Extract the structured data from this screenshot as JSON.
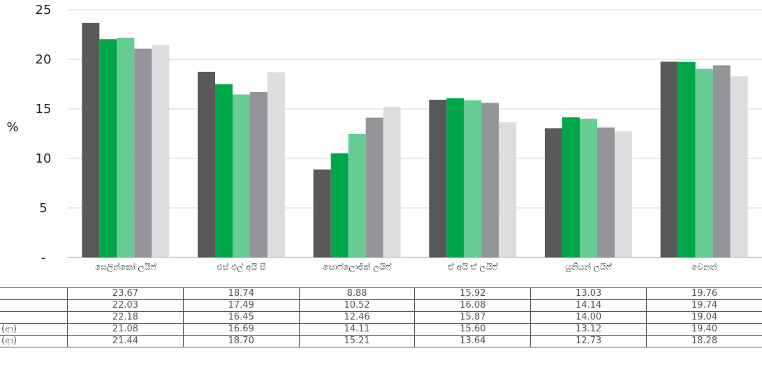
{
  "chart_data": {
    "type": "bar",
    "title": "",
    "xlabel": "",
    "ylabel": "%",
    "ylim": [
      0,
      25
    ],
    "yticks": [
      "-",
      "5",
      "10",
      "15",
      "20",
      "25"
    ],
    "grid": true,
    "categories": [
      "සෙලින්කෝ ලයිෆ්",
      "එස් එල් අයි සී",
      "සොෆ්ලොජික් ලයිෆ්",
      "ඒ අයි ඒ ලයිෆ්",
      "යුනියන් ලයිෆ්",
      "වෙනත්"
    ],
    "series": [
      {
        "name": "",
        "color": "#58595b",
        "values": [
          23.67,
          18.74,
          8.88,
          15.92,
          13.03,
          19.76
        ],
        "labels": [
          "23.67",
          "18.74",
          "8.88",
          "15.92",
          "13.03",
          "19.76"
        ]
      },
      {
        "name": "",
        "color": "#00a74a",
        "values": [
          22.03,
          17.49,
          10.52,
          16.08,
          14.14,
          19.74
        ],
        "labels": [
          "22.03",
          "17.49",
          "10.52",
          "16.08",
          "14.14",
          "19.74"
        ]
      },
      {
        "name": "",
        "color": "#66cc94",
        "values": [
          22.18,
          16.45,
          12.46,
          15.87,
          14.0,
          19.04
        ],
        "labels": [
          "22.18",
          "16.45",
          "12.46",
          "15.87",
          "14.00",
          "19.04"
        ]
      },
      {
        "name": "(ආ)",
        "color": "#939598",
        "values": [
          21.08,
          16.69,
          14.11,
          15.6,
          13.12,
          19.4
        ],
        "labels": [
          "21.08",
          "16.69",
          "14.11",
          "15.60",
          "13.12",
          "19.40"
        ]
      },
      {
        "name": "(ආ)",
        "color": "#dcddde",
        "values": [
          21.44,
          18.7,
          15.21,
          13.64,
          12.73,
          18.28
        ],
        "labels": [
          "21.44",
          "18.70",
          "15.21",
          "13.64",
          "12.73",
          "18.28"
        ]
      }
    ]
  }
}
